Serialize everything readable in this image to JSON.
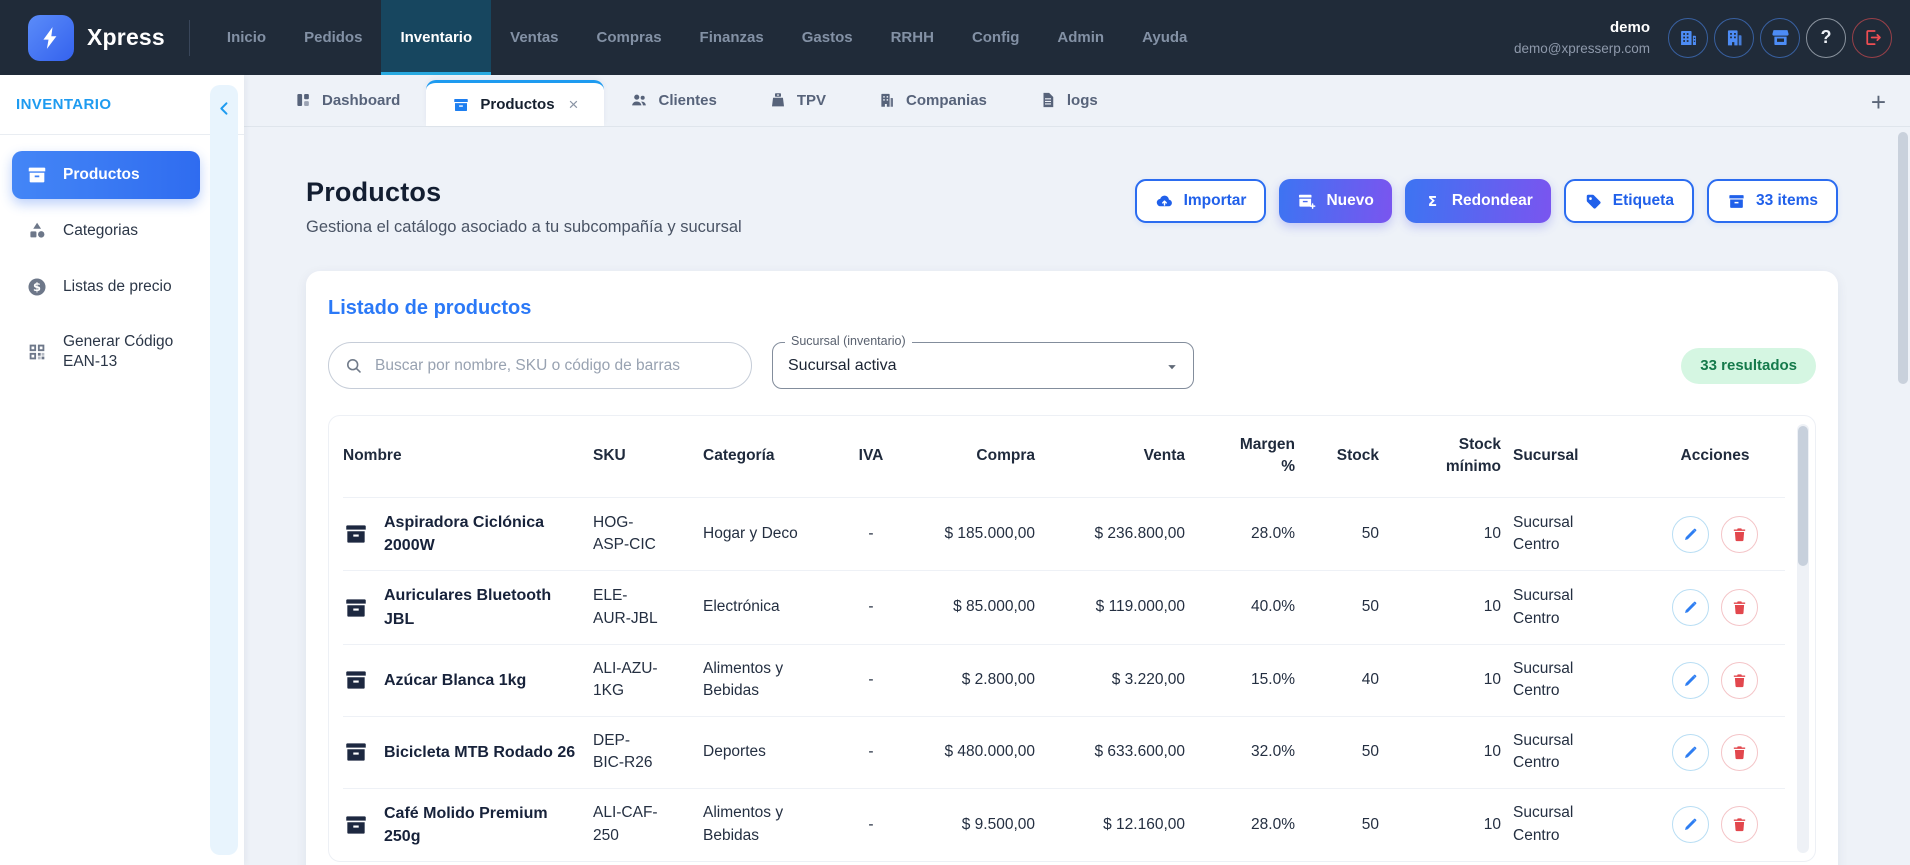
{
  "topnav": {
    "brand": "Xpress",
    "items": [
      {
        "label": "Inicio",
        "active": false
      },
      {
        "label": "Pedidos",
        "active": false
      },
      {
        "label": "Inventario",
        "active": true
      },
      {
        "label": "Ventas",
        "active": false
      },
      {
        "label": "Compras",
        "active": false
      },
      {
        "label": "Finanzas",
        "active": false
      },
      {
        "label": "Gastos",
        "active": false
      },
      {
        "label": "RRHH",
        "active": false
      },
      {
        "label": "Config",
        "active": false
      },
      {
        "label": "Admin",
        "active": false
      },
      {
        "label": "Ayuda",
        "active": false
      }
    ],
    "user": {
      "name": "demo",
      "email": "demo@xpresserp.com"
    },
    "icon_buttons": [
      {
        "name": "companies-button",
        "icon": "buildings",
        "color": "blue"
      },
      {
        "name": "branches-button",
        "icon": "building",
        "color": "blue"
      },
      {
        "name": "store-button",
        "icon": "storefront",
        "color": "blue"
      },
      {
        "name": "help-button",
        "icon": "help",
        "color": "gray",
        "glyph": "?"
      },
      {
        "name": "logout-button",
        "icon": "logout",
        "color": "red"
      }
    ]
  },
  "sidebar": {
    "title": "INVENTARIO",
    "collapse_icon": "chevron-left",
    "items": [
      {
        "label": "Productos",
        "icon": "archive-box",
        "active": true
      },
      {
        "label": "Categorias",
        "icon": "shapes",
        "active": false
      },
      {
        "label": "Listas de precio",
        "icon": "dollar-circle",
        "active": false
      },
      {
        "label": "Generar Código EAN-13",
        "icon": "qr-code",
        "active": false
      }
    ]
  },
  "tabs": {
    "items": [
      {
        "label": "Dashboard",
        "icon": "dashboard",
        "active": false,
        "closable": false
      },
      {
        "label": "Productos",
        "icon": "archive-box",
        "active": true,
        "closable": true
      },
      {
        "label": "Clientes",
        "icon": "users",
        "active": false,
        "closable": false
      },
      {
        "label": "TPV",
        "icon": "pos",
        "active": false,
        "closable": false
      },
      {
        "label": "Companias",
        "icon": "building",
        "active": false,
        "closable": false
      },
      {
        "label": "logs",
        "icon": "file",
        "active": false,
        "closable": false
      }
    ],
    "close_glyph": "×",
    "add_glyph": "+"
  },
  "page": {
    "title": "Productos",
    "subtitle": "Gestiona el catálogo asociado a tu subcompañía y sucursal",
    "actions": [
      {
        "label": "Importar",
        "icon": "cloud-upload",
        "variant": "outline"
      },
      {
        "label": "Nuevo",
        "icon": "box-plus",
        "variant": "gradient"
      },
      {
        "label": "Redondear",
        "icon": "sigma",
        "variant": "gradient"
      },
      {
        "label": "Etiqueta",
        "icon": "tag",
        "variant": "outline"
      },
      {
        "label": "33 items",
        "icon": "archive-box",
        "variant": "outline"
      }
    ]
  },
  "card": {
    "title": "Listado de productos",
    "search_icon": "search",
    "search_placeholder": "Buscar por nombre, SKU o código de barras",
    "select_label": "Sucursal (inventario)",
    "select_value": "Sucursal activa",
    "select_caret_icon": "caret-down",
    "results_badge": "33 resultados"
  },
  "table": {
    "columns": [
      "Nombre",
      "SKU",
      "Categoría",
      "IVA",
      "Compra",
      "Venta",
      "Margen %",
      "Stock",
      "Stock mínimo",
      "Sucursal",
      "Acciones"
    ],
    "row_icon": "archive-box",
    "action_icons": [
      {
        "name": "edit",
        "icon": "pencil"
      },
      {
        "name": "delete",
        "icon": "trash"
      }
    ],
    "rows": [
      {
        "nombre": "Aspiradora Ciclónica 2000W",
        "sku": "HOG-ASP-CIC",
        "categoria": "Hogar y Deco",
        "iva": "-",
        "compra": "$ 185.000,00",
        "venta": "$ 236.800,00",
        "margen": "28.0%",
        "stock": "50",
        "stock_minimo": "10",
        "sucursal": "Sucursal Centro"
      },
      {
        "nombre": "Auriculares Bluetooth JBL",
        "sku": "ELE-AUR-JBL",
        "categoria": "Electrónica",
        "iva": "-",
        "compra": "$ 85.000,00",
        "venta": "$ 119.000,00",
        "margen": "40.0%",
        "stock": "50",
        "stock_minimo": "10",
        "sucursal": "Sucursal Centro"
      },
      {
        "nombre": "Azúcar Blanca 1kg",
        "sku": "ALI-AZU-1KG",
        "categoria": "Alimentos y Bebidas",
        "iva": "-",
        "compra": "$ 2.800,00",
        "venta": "$ 3.220,00",
        "margen": "15.0%",
        "stock": "40",
        "stock_minimo": "10",
        "sucursal": "Sucursal Centro"
      },
      {
        "nombre": "Bicicleta MTB Rodado 26",
        "sku": "DEP-BIC-R26",
        "categoria": "Deportes",
        "iva": "-",
        "compra": "$ 480.000,00",
        "venta": "$ 633.600,00",
        "margen": "32.0%",
        "stock": "50",
        "stock_minimo": "10",
        "sucursal": "Sucursal Centro"
      },
      {
        "nombre": "Café Molido Premium 250g",
        "sku": "ALI-CAF-250",
        "categoria": "Alimentos y Bebidas",
        "iva": "-",
        "compra": "$ 9.500,00",
        "venta": "$ 12.160,00",
        "margen": "28.0%",
        "stock": "50",
        "stock_minimo": "10",
        "sucursal": "Sucursal Centro"
      }
    ]
  },
  "colors": {
    "nav_bg": "#202b39",
    "accent_blue": "#2b6cf0",
    "active_underline": "#28a9e0",
    "sidebar_active_gradient": [
      "#4486f6",
      "#2f6cf0"
    ],
    "button_gradient": [
      "#3d74f2",
      "#7a55ef"
    ],
    "badge_bg": "#d5f6e2",
    "badge_text": "#157a4b",
    "danger": "#e2474d"
  }
}
